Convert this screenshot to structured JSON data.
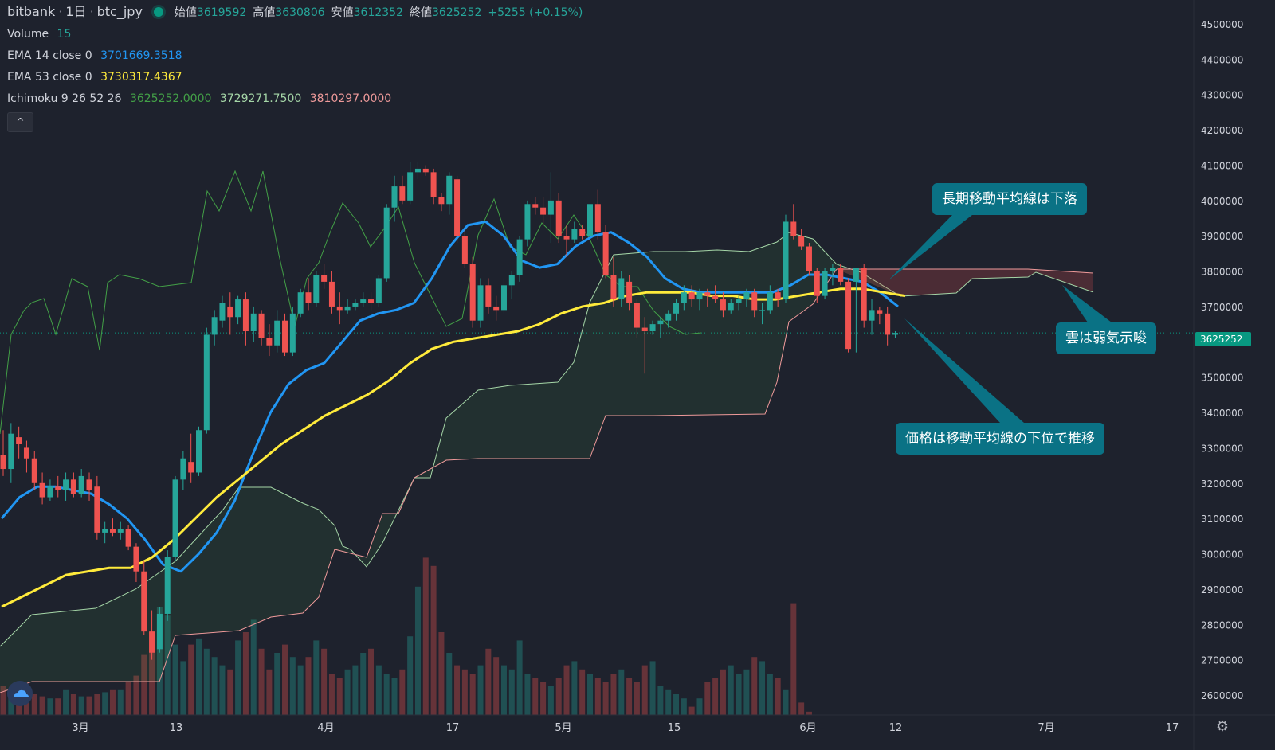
{
  "header": {
    "exchange": "bitbank",
    "interval": "1日",
    "symbol": "btc_jpy",
    "ohlc": {
      "open_label": "始値",
      "open": "3619592",
      "high_label": "高値",
      "high": "3630806",
      "low_label": "安値",
      "low": "3612352",
      "close_label": "終値",
      "close": "3625252",
      "change": "+5255 (+0.15%)"
    }
  },
  "indicators": {
    "volume": {
      "label": "Volume",
      "value": "15"
    },
    "ema14": {
      "label": "EMA 14 close 0",
      "value": "3701669.3518",
      "color": "#2196f3"
    },
    "ema53": {
      "label": "EMA 53 close 0",
      "value": "3730317.4367",
      "color": "#ffeb3b"
    },
    "ichimoku": {
      "label": "Ichimoku 9 26 52 26",
      "v1": "3625252.0000",
      "v2": "3729271.7500",
      "v3": "3810297.0000"
    }
  },
  "collapse_button": "^",
  "callouts": {
    "long_ma": "長期移動平均線は下落",
    "cloud": "雲は弱気示唆",
    "price_below": "価格は移動平均線の下位で推移"
  },
  "last_price_tag": "3625252",
  "colors": {
    "background": "#1e222d",
    "up": "#26a69a",
    "down": "#ef5350",
    "ema14": "#2196f3",
    "ema53": "#ffeb3b",
    "callout": "#0a7285"
  },
  "icons": {
    "brand": "tradingview-cloud-icon",
    "settings": "gear-icon"
  },
  "chart_data": {
    "type": "candlestick",
    "y_axis_ticks": [
      "4500000",
      "4400000",
      "4300000",
      "4200000",
      "4100000",
      "4000000",
      "3900000",
      "3800000",
      "3700000",
      "3600000",
      "3500000",
      "3400000",
      "3300000",
      "3200000",
      "3100000",
      "3000000",
      "2900000",
      "2800000",
      "2700000",
      "2600000"
    ],
    "x_axis_ticks": [
      "3月",
      "13",
      "4月",
      "17",
      "5月",
      "15",
      "6月",
      "12",
      "7月",
      "17"
    ],
    "ylim": [
      2560000,
      4560000
    ],
    "last_price": 3625252,
    "candles_ohlc": [
      [
        3280000,
        3350000,
        3220000,
        3240000
      ],
      [
        3240000,
        3370000,
        3200000,
        3340000
      ],
      [
        3330000,
        3360000,
        3270000,
        3310000
      ],
      [
        3300000,
        3320000,
        3230000,
        3270000
      ],
      [
        3270000,
        3290000,
        3180000,
        3200000
      ],
      [
        3200000,
        3230000,
        3140000,
        3160000
      ],
      [
        3160000,
        3210000,
        3150000,
        3190000
      ],
      [
        3190000,
        3220000,
        3160000,
        3180000
      ],
      [
        3180000,
        3230000,
        3150000,
        3210000
      ],
      [
        3210000,
        3230000,
        3160000,
        3170000
      ],
      [
        3170000,
        3240000,
        3160000,
        3220000
      ],
      [
        3210000,
        3230000,
        3150000,
        3180000
      ],
      [
        3190000,
        3220000,
        3040000,
        3060000
      ],
      [
        3060000,
        3090000,
        3030000,
        3070000
      ],
      [
        3070000,
        3100000,
        3050000,
        3060000
      ],
      [
        3060000,
        3090000,
        3040000,
        3070000
      ],
      [
        3070000,
        3080000,
        3010000,
        3020000
      ],
      [
        3020000,
        3030000,
        2920000,
        2950000
      ],
      [
        2950000,
        2980000,
        2770000,
        2780000
      ],
      [
        2780000,
        2840000,
        2700000,
        2720000
      ],
      [
        2730000,
        2850000,
        2720000,
        2830000
      ],
      [
        2830000,
        3010000,
        2810000,
        2990000
      ],
      [
        2990000,
        3220000,
        2980000,
        3210000
      ],
      [
        3210000,
        3290000,
        3180000,
        3270000
      ],
      [
        3260000,
        3340000,
        3200000,
        3230000
      ],
      [
        3230000,
        3360000,
        3220000,
        3350000
      ],
      [
        3350000,
        3640000,
        3340000,
        3620000
      ],
      [
        3620000,
        3690000,
        3590000,
        3670000
      ],
      [
        3660000,
        3730000,
        3640000,
        3710000
      ],
      [
        3700000,
        3740000,
        3620000,
        3670000
      ],
      [
        3670000,
        3730000,
        3650000,
        3720000
      ],
      [
        3720000,
        3740000,
        3590000,
        3630000
      ],
      [
        3630000,
        3700000,
        3600000,
        3680000
      ],
      [
        3680000,
        3690000,
        3590000,
        3610000
      ],
      [
        3610000,
        3650000,
        3560000,
        3590000
      ],
      [
        3590000,
        3690000,
        3570000,
        3660000
      ],
      [
        3660000,
        3680000,
        3560000,
        3570000
      ],
      [
        3570000,
        3700000,
        3560000,
        3680000
      ],
      [
        3680000,
        3750000,
        3670000,
        3740000
      ],
      [
        3740000,
        3780000,
        3690000,
        3710000
      ],
      [
        3710000,
        3800000,
        3700000,
        3790000
      ],
      [
        3790000,
        3820000,
        3750000,
        3770000
      ],
      [
        3770000,
        3800000,
        3680000,
        3700000
      ],
      [
        3700000,
        3740000,
        3650000,
        3690000
      ],
      [
        3690000,
        3720000,
        3680000,
        3700000
      ],
      [
        3700000,
        3720000,
        3690000,
        3710000
      ],
      [
        3710000,
        3740000,
        3700000,
        3720000
      ],
      [
        3720000,
        3740000,
        3690000,
        3710000
      ],
      [
        3710000,
        3790000,
        3700000,
        3780000
      ],
      [
        3780000,
        3990000,
        3770000,
        3980000
      ],
      [
        3980000,
        4070000,
        3940000,
        4040000
      ],
      [
        4040000,
        4070000,
        3990000,
        4000000
      ],
      [
        4000000,
        4110000,
        3990000,
        4080000
      ],
      [
        4080000,
        4110000,
        4060000,
        4090000
      ],
      [
        4090000,
        4100000,
        4070000,
        4080000
      ],
      [
        4080000,
        4090000,
        3990000,
        4010000
      ],
      [
        4010000,
        4020000,
        3970000,
        3990000
      ],
      [
        3990000,
        4080000,
        3960000,
        4070000
      ],
      [
        4060000,
        4070000,
        3880000,
        3900000
      ],
      [
        3900000,
        3920000,
        3810000,
        3820000
      ],
      [
        3820000,
        3840000,
        3640000,
        3660000
      ],
      [
        3660000,
        3780000,
        3640000,
        3760000
      ],
      [
        3760000,
        3780000,
        3680000,
        3700000
      ],
      [
        3700000,
        3730000,
        3660000,
        3690000
      ],
      [
        3690000,
        3780000,
        3680000,
        3760000
      ],
      [
        3760000,
        3800000,
        3720000,
        3790000
      ],
      [
        3790000,
        3900000,
        3770000,
        3890000
      ],
      [
        3890000,
        4000000,
        3870000,
        3990000
      ],
      [
        3990000,
        4010000,
        3960000,
        3980000
      ],
      [
        3980000,
        4010000,
        3930000,
        3960000
      ],
      [
        3960000,
        4080000,
        3880000,
        4000000
      ],
      [
        4000000,
        4020000,
        3880000,
        3900000
      ],
      [
        3900000,
        3930000,
        3840000,
        3890000
      ],
      [
        3890000,
        3940000,
        3880000,
        3920000
      ],
      [
        3920000,
        3930000,
        3890000,
        3900000
      ],
      [
        3900000,
        4010000,
        3880000,
        3990000
      ],
      [
        3990000,
        4030000,
        3890000,
        3910000
      ],
      [
        3910000,
        3930000,
        3780000,
        3790000
      ],
      [
        3790000,
        3840000,
        3700000,
        3720000
      ],
      [
        3720000,
        3800000,
        3700000,
        3780000
      ],
      [
        3770000,
        3790000,
        3690000,
        3710000
      ],
      [
        3710000,
        3720000,
        3610000,
        3640000
      ],
      [
        3640000,
        3670000,
        3510000,
        3630000
      ],
      [
        3630000,
        3660000,
        3620000,
        3650000
      ],
      [
        3650000,
        3670000,
        3610000,
        3660000
      ],
      [
        3660000,
        3690000,
        3640000,
        3680000
      ],
      [
        3680000,
        3720000,
        3660000,
        3710000
      ],
      [
        3710000,
        3760000,
        3690000,
        3740000
      ],
      [
        3740000,
        3760000,
        3700000,
        3720000
      ],
      [
        3720000,
        3750000,
        3690000,
        3740000
      ],
      [
        3740000,
        3750000,
        3700000,
        3730000
      ],
      [
        3730000,
        3760000,
        3710000,
        3720000
      ],
      [
        3720000,
        3740000,
        3670000,
        3690000
      ],
      [
        3690000,
        3720000,
        3680000,
        3710000
      ],
      [
        3710000,
        3730000,
        3690000,
        3720000
      ],
      [
        3720000,
        3750000,
        3700000,
        3740000
      ],
      [
        3740000,
        3750000,
        3670000,
        3690000
      ],
      [
        3690000,
        3710000,
        3650000,
        3690000
      ],
      [
        3690000,
        3760000,
        3680000,
        3740000
      ],
      [
        3740000,
        3750000,
        3700000,
        3720000
      ],
      [
        3720000,
        3960000,
        3710000,
        3940000
      ],
      [
        3940000,
        3990000,
        3890000,
        3900000
      ],
      [
        3900000,
        3920000,
        3860000,
        3870000
      ],
      [
        3870000,
        3880000,
        3790000,
        3800000
      ],
      [
        3800000,
        3810000,
        3710000,
        3730000
      ],
      [
        3730000,
        3810000,
        3720000,
        3800000
      ],
      [
        3800000,
        3820000,
        3760000,
        3810000
      ],
      [
        3810000,
        3820000,
        3760000,
        3770000
      ],
      [
        3770000,
        3780000,
        3570000,
        3580000
      ],
      [
        3770000,
        3810000,
        3570000,
        3810000
      ],
      [
        3810000,
        3820000,
        3640000,
        3660000
      ],
      [
        3660000,
        3720000,
        3620000,
        3690000
      ],
      [
        3690000,
        3700000,
        3650000,
        3680000
      ],
      [
        3680000,
        3700000,
        3590000,
        3620000
      ],
      [
        3620000,
        3630000,
        3610000,
        3625252
      ]
    ],
    "ema14": [
      3100000,
      3160000,
      3190000,
      3190000,
      3180000,
      3170000,
      3140000,
      3100000,
      3040000,
      2970000,
      2950000,
      3000000,
      3060000,
      3150000,
      3280000,
      3400000,
      3480000,
      3520000,
      3540000,
      3600000,
      3660000,
      3680000,
      3690000,
      3710000,
      3780000,
      3870000,
      3930000,
      3940000,
      3900000,
      3830000,
      3810000,
      3820000,
      3870000,
      3900000,
      3910000,
      3880000,
      3840000,
      3780000,
      3750000,
      3740000,
      3740000,
      3740000,
      3740000,
      3740000,
      3760000,
      3790000,
      3790000,
      3780000,
      3770000,
      3740000,
      3700000
    ],
    "ema53": [
      2850000,
      2880000,
      2910000,
      2940000,
      2950000,
      2960000,
      2960000,
      2990000,
      3040000,
      3100000,
      3160000,
      3210000,
      3260000,
      3310000,
      3350000,
      3390000,
      3420000,
      3450000,
      3490000,
      3540000,
      3580000,
      3600000,
      3610000,
      3620000,
      3630000,
      3650000,
      3680000,
      3700000,
      3710000,
      3730000,
      3740000,
      3740000,
      3740000,
      3730000,
      3730000,
      3720000,
      3720000,
      3730000,
      3740000,
      3750000,
      3750000,
      3740000,
      3730000
    ],
    "volume": [
      70,
      60,
      55,
      55,
      50,
      45,
      40,
      40,
      60,
      50,
      45,
      45,
      50,
      55,
      60,
      60,
      80,
      95,
      145,
      200,
      260,
      240,
      170,
      130,
      170,
      185,
      160,
      140,
      120,
      110,
      180,
      200,
      230,
      160,
      110,
      150,
      170,
      140,
      120,
      140,
      180,
      160,
      100,
      90,
      110,
      120,
      150,
      160,
      120,
      100,
      90,
      110,
      190,
      310,
      380,
      360,
      200,
      150,
      120,
      110,
      100,
      120,
      160,
      140,
      120,
      110,
      180,
      100,
      90,
      80,
      70,
      90,
      120,
      130,
      110,
      100,
      90,
      80,
      100,
      110,
      90,
      80,
      120,
      130,
      70,
      60,
      50,
      40,
      20,
      40,
      80,
      90,
      110,
      120,
      100,
      110,
      140,
      130,
      100,
      90,
      60,
      270,
      30,
      8
    ]
  }
}
